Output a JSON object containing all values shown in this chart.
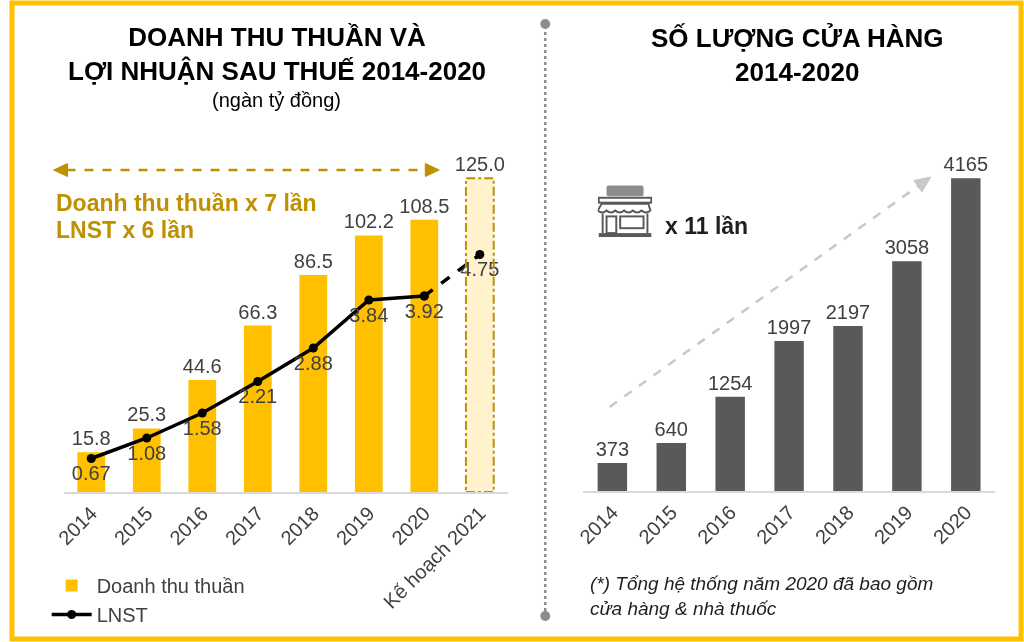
{
  "chart_data": [
    {
      "type": "bar",
      "title": "DOANH THU THUẦN VÀ\nLỢI NHUẬN SAU THUẾ 2014-2020",
      "subtitle": "(ngàn tỷ đồng)",
      "categories": [
        "2014",
        "2015",
        "2016",
        "2017",
        "2018",
        "2019",
        "2020",
        "Kế hoạch 2021"
      ],
      "series": [
        {
          "name": "Doanh thu thuần",
          "color": "#ffc000",
          "values": [
            15.8,
            25.3,
            44.6,
            66.3,
            86.5,
            102.2,
            108.5,
            null
          ]
        },
        {
          "color": "#fff2cc",
          "line_style": "dashed",
          "values": [
            null,
            null,
            null,
            null,
            null,
            null,
            null,
            125.0
          ],
          "value_labels": [
            null,
            null,
            null,
            null,
            null,
            null,
            null,
            "125.0"
          ]
        },
        {
          "type": "line",
          "name": "LNST",
          "color": "#000000",
          "axis": "y2",
          "values": [
            0.67,
            1.08,
            1.58,
            2.21,
            2.88,
            3.84,
            3.92,
            null
          ]
        },
        {
          "type": "line",
          "color": "#000000",
          "axis": "y2",
          "line_style": "dashed",
          "values": [
            null,
            null,
            null,
            null,
            null,
            null,
            3.92,
            4.75
          ],
          "value_labels": [
            null,
            null,
            null,
            null,
            null,
            null,
            null,
            "4.75"
          ]
        }
      ],
      "data_labels": true,
      "marker": "circle",
      "legend": "bottom left",
      "tick_labels": "x",
      "annotations": [
        "Doanh thu thuần x 7 lần",
        "LNST x 6 lần"
      ]
    },
    {
      "type": "bar",
      "title": "SỐ LƯỢNG CỬA HÀNG\n2014-2020",
      "categories": [
        "2014",
        "2015",
        "2016",
        "2017",
        "2018",
        "2019",
        "2020"
      ],
      "series": [
        {
          "color": "#595959",
          "values": [
            373,
            640,
            1254,
            1997,
            2197,
            3058,
            4165
          ]
        }
      ],
      "data_labels": true,
      "tick_labels": "x",
      "annotations": [
        "x 11 lần",
        "(*) Tổng hệ thống năm 2020 đã bao gồm\ncửa hàng & nhà thuốc"
      ]
    }
  ]
}
